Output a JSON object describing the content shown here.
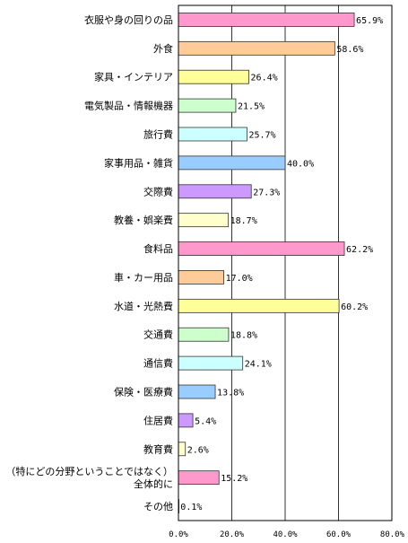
{
  "chart_data": {
    "type": "bar",
    "orientation": "horizontal",
    "title": "",
    "xlabel": "",
    "ylabel": "",
    "xlim": [
      0,
      80
    ],
    "grid": true,
    "legend": "none",
    "ticks": [
      {
        "value": 0,
        "label": "0.0%"
      },
      {
        "value": 20,
        "label": "20.0%"
      },
      {
        "value": 40,
        "label": "40.0%"
      },
      {
        "value": 60,
        "label": "60.0%"
      },
      {
        "value": 80,
        "label": "80.0%"
      }
    ],
    "categories": [
      {
        "label": [
          "衣服や身の回りの品"
        ],
        "value": 65.9,
        "value_label": "65.9%",
        "color": "#ff99cc"
      },
      {
        "label": [
          "外食"
        ],
        "value": 58.6,
        "value_label": "58.6%",
        "color": "#ffcc99"
      },
      {
        "label": [
          "家具・インテリア"
        ],
        "value": 26.4,
        "value_label": "26.4%",
        "color": "#ffff99"
      },
      {
        "label": [
          "電気製品・情報機器"
        ],
        "value": 21.5,
        "value_label": "21.5%",
        "color": "#ccffcc"
      },
      {
        "label": [
          "旅行費"
        ],
        "value": 25.7,
        "value_label": "25.7%",
        "color": "#ccffff"
      },
      {
        "label": [
          "家事用品・雑貨"
        ],
        "value": 40.0,
        "value_label": "40.0%",
        "color": "#99ccff"
      },
      {
        "label": [
          "交際費"
        ],
        "value": 27.3,
        "value_label": "27.3%",
        "color": "#cc99ff"
      },
      {
        "label": [
          "教養・娯楽費"
        ],
        "value": 18.7,
        "value_label": "18.7%",
        "color": "#ffffcc"
      },
      {
        "label": [
          "食料品"
        ],
        "value": 62.2,
        "value_label": "62.2%",
        "color": "#ff99cc"
      },
      {
        "label": [
          "車・カー用品"
        ],
        "value": 17.0,
        "value_label": "17.0%",
        "color": "#ffcc99"
      },
      {
        "label": [
          "水道・光熱費"
        ],
        "value": 60.2,
        "value_label": "60.2%",
        "color": "#ffff99"
      },
      {
        "label": [
          "交通費"
        ],
        "value": 18.8,
        "value_label": "18.8%",
        "color": "#ccffcc"
      },
      {
        "label": [
          "通信費"
        ],
        "value": 24.1,
        "value_label": "24.1%",
        "color": "#ccffff"
      },
      {
        "label": [
          "保険・医療費"
        ],
        "value": 13.8,
        "value_label": "13.8%",
        "color": "#99ccff"
      },
      {
        "label": [
          "住居費"
        ],
        "value": 5.4,
        "value_label": "5.4%",
        "color": "#cc99ff"
      },
      {
        "label": [
          "教育費"
        ],
        "value": 2.6,
        "value_label": "2.6%",
        "color": "#ffffcc"
      },
      {
        "label": [
          "（特にどの分野ということではなく）",
          "全体的に"
        ],
        "value": 15.2,
        "value_label": "15.2%",
        "color": "#ff99cc"
      },
      {
        "label": [
          "その他"
        ],
        "value": 0.1,
        "value_label": "0.1%",
        "color": "#ffcc99"
      }
    ]
  }
}
